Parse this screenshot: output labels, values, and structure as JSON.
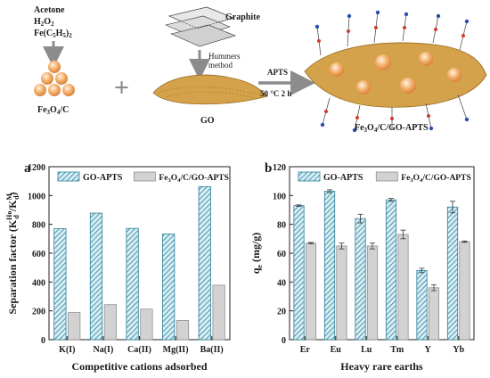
{
  "colors": {
    "hatch_stroke": "#2f7f9a",
    "hatch_fill": "#d6eef4",
    "gray_bar": "#d2d2d2",
    "gray_stroke": "#8f8f8f",
    "sphere_orange": "#f0a35e",
    "go_sheet": "#d4a24a",
    "arrow_gray": "#8c8c8c"
  },
  "scheme": {
    "reagents": [
      "Acetone",
      "H2O2",
      "Fe(C5H5)2"
    ],
    "graphite_label": "Graphite",
    "hummers_label": "Hummers method",
    "apts_label": "APTS",
    "condition_label": "50 °C 2 h",
    "fe3o4c_label": "Fe3O4/C",
    "go_label": "GO",
    "product_label": "Fe3O4/C/GO-APTS",
    "plus_symbol": "+"
  },
  "chart_data": [
    {
      "type": "bar",
      "panel_letter": "a",
      "categories": [
        "K(I)",
        "Na(I)",
        "Ca(II)",
        "Mg(II)",
        "Ba(II)"
      ],
      "series": [
        {
          "name": "GO-APTS",
          "values": [
            770,
            878,
            772,
            733,
            1062
          ]
        },
        {
          "name": "Fe3O4/C/GO-APTS",
          "values": [
            188,
            243,
            212,
            133,
            378
          ]
        }
      ],
      "xlabel": "Competitive cations adsorbed",
      "ylabel": "Separation factor (Kd^Ho/Kd^M)",
      "ylim": [
        0,
        1200
      ],
      "yticks": [
        0,
        200,
        400,
        600,
        800,
        1000,
        1200
      ],
      "legend": "top-left",
      "grid": false
    },
    {
      "type": "bar",
      "panel_letter": "b",
      "categories": [
        "Er",
        "Eu",
        "Lu",
        "Tm",
        "Y",
        "Yb"
      ],
      "series": [
        {
          "name": "GO-APTS",
          "values": [
            93,
            103,
            84,
            97,
            48,
            92
          ],
          "errors": [
            0.5,
            1,
            3,
            1,
            1.5,
            4
          ]
        },
        {
          "name": "Fe3O4/C/GO-APTS",
          "values": [
            67,
            65,
            65,
            73,
            36,
            68
          ],
          "errors": [
            0.5,
            2,
            2,
            3,
            2,
            0.5
          ]
        }
      ],
      "xlabel": "Heavy rare earths",
      "ylabel": "qe (mg/g)",
      "ylim": [
        0,
        120
      ],
      "yticks": [
        0,
        20,
        40,
        60,
        80,
        100,
        120
      ],
      "legend": "top-left",
      "grid": false
    }
  ]
}
